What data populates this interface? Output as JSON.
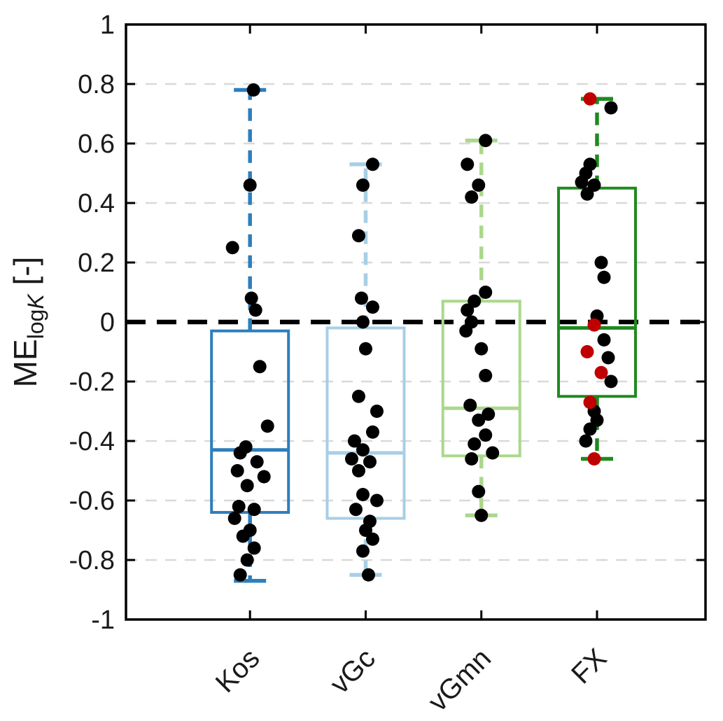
{
  "figure": {
    "background": "#ffffff"
  },
  "chart_data": {
    "type": "boxplot",
    "title": "",
    "ylabel": {
      "main": "ME",
      "sub": "log",
      "sub_italic": "K",
      "suffix": " [-]"
    },
    "ylim": [
      -1,
      1
    ],
    "yticks": [
      {
        "v": 1,
        "t": "1"
      },
      {
        "v": 0.8,
        "t": "0.8"
      },
      {
        "v": 0.6,
        "t": "0.6"
      },
      {
        "v": 0.4,
        "t": "0.4"
      },
      {
        "v": 0.2,
        "t": "0.2"
      },
      {
        "v": 0,
        "t": "0"
      },
      {
        "v": -0.2,
        "t": "-0.2"
      },
      {
        "v": -0.4,
        "t": "-0.4"
      },
      {
        "v": -0.6,
        "t": "-0.6"
      },
      {
        "v": -0.8,
        "t": "-0.8"
      },
      {
        "v": -1,
        "t": "-1"
      }
    ],
    "grid_values": [
      0.8,
      0.6,
      0.4,
      0.2,
      -0.2,
      -0.4,
      -0.6,
      -0.8
    ],
    "zero_line_value": 0,
    "grid_on": true,
    "legend": "none",
    "categories": [
      "Kos",
      "vGc",
      "vGmn",
      "FX"
    ],
    "colors": [
      "#2e7ebc",
      "#a7cfe5",
      "#abd88c",
      "#1f8a1f"
    ],
    "grid_color": "#d9d9d9",
    "axis_color": "#000000",
    "tick_label_color": "#1a1a1a",
    "point_color": "#000000",
    "outlier_point_color": "#c00000",
    "boxes": [
      {
        "label": "Kos",
        "whisker_low": -0.87,
        "q1": -0.64,
        "median": -0.43,
        "q3": -0.03,
        "whisker_high": 0.78
      },
      {
        "label": "vGc",
        "whisker_low": -0.85,
        "q1": -0.66,
        "median": -0.44,
        "q3": -0.02,
        "whisker_high": 0.53
      },
      {
        "label": "vGmn",
        "whisker_low": -0.65,
        "q1": -0.45,
        "median": -0.29,
        "q3": 0.07,
        "whisker_high": 0.61
      },
      {
        "label": "FX",
        "whisker_low": -0.46,
        "q1": -0.25,
        "median": -0.02,
        "q3": 0.45,
        "whisker_high": 0.75
      }
    ],
    "points": [
      {
        "category": "Kos",
        "black": [
          [
            5,
            0.78
          ],
          [
            0,
            0.46
          ],
          [
            -25,
            0.25
          ],
          [
            2,
            0.08
          ],
          [
            8,
            0.04
          ],
          [
            14,
            -0.15
          ],
          [
            25,
            -0.35
          ],
          [
            -6,
            -0.42
          ],
          [
            -14,
            -0.44
          ],
          [
            10,
            -0.47
          ],
          [
            -18,
            -0.5
          ],
          [
            20,
            -0.52
          ],
          [
            -4,
            -0.55
          ],
          [
            -16,
            -0.62
          ],
          [
            6,
            -0.63
          ],
          [
            -22,
            -0.66
          ],
          [
            0,
            -0.7
          ],
          [
            -10,
            -0.72
          ],
          [
            6,
            -0.76
          ],
          [
            -4,
            -0.8
          ],
          [
            -14,
            -0.85
          ]
        ],
        "red": []
      },
      {
        "category": "vGc",
        "black": [
          [
            10,
            0.53
          ],
          [
            -4,
            0.46
          ],
          [
            -10,
            0.29
          ],
          [
            -6,
            0.08
          ],
          [
            10,
            0.05
          ],
          [
            -4,
            0
          ],
          [
            0,
            -0.09
          ],
          [
            -10,
            -0.25
          ],
          [
            16,
            -0.3
          ],
          [
            10,
            -0.37
          ],
          [
            -16,
            -0.4
          ],
          [
            -4,
            -0.43
          ],
          [
            -20,
            -0.46
          ],
          [
            6,
            -0.47
          ],
          [
            -10,
            -0.5
          ],
          [
            -4,
            -0.58
          ],
          [
            16,
            -0.6
          ],
          [
            -14,
            -0.63
          ],
          [
            6,
            -0.67
          ],
          [
            0,
            -0.7
          ],
          [
            10,
            -0.73
          ],
          [
            -4,
            -0.77
          ],
          [
            4,
            -0.85
          ]
        ],
        "red": []
      },
      {
        "category": "vGmn",
        "black": [
          [
            6,
            0.61
          ],
          [
            -20,
            0.53
          ],
          [
            -4,
            0.46
          ],
          [
            -14,
            0.42
          ],
          [
            6,
            0.1
          ],
          [
            -10,
            0.07
          ],
          [
            -20,
            0.04
          ],
          [
            -14,
            0
          ],
          [
            -22,
            -0.03
          ],
          [
            0,
            -0.09
          ],
          [
            6,
            -0.18
          ],
          [
            -16,
            -0.28
          ],
          [
            10,
            -0.31
          ],
          [
            -4,
            -0.33
          ],
          [
            6,
            -0.38
          ],
          [
            -10,
            -0.41
          ],
          [
            16,
            -0.44
          ],
          [
            -14,
            -0.46
          ],
          [
            -4,
            -0.57
          ],
          [
            0,
            -0.65
          ]
        ],
        "red": []
      },
      {
        "category": "FX",
        "black": [
          [
            20,
            0.72
          ],
          [
            -10,
            0.53
          ],
          [
            -16,
            0.5
          ],
          [
            -22,
            0.47
          ],
          [
            -4,
            0.46
          ],
          [
            -14,
            0.43
          ],
          [
            6,
            0.2
          ],
          [
            10,
            0.15
          ],
          [
            0,
            0.02
          ],
          [
            10,
            -0.06
          ],
          [
            16,
            -0.12
          ],
          [
            20,
            -0.2
          ],
          [
            -4,
            -0.3
          ],
          [
            0,
            -0.33
          ],
          [
            -10,
            -0.36
          ],
          [
            -16,
            -0.4
          ]
        ],
        "red": [
          [
            -10,
            0.75
          ],
          [
            -4,
            -0.01
          ],
          [
            -14,
            -0.1
          ],
          [
            6,
            -0.17
          ],
          [
            -10,
            -0.27
          ],
          [
            -4,
            -0.46
          ]
        ]
      }
    ]
  }
}
